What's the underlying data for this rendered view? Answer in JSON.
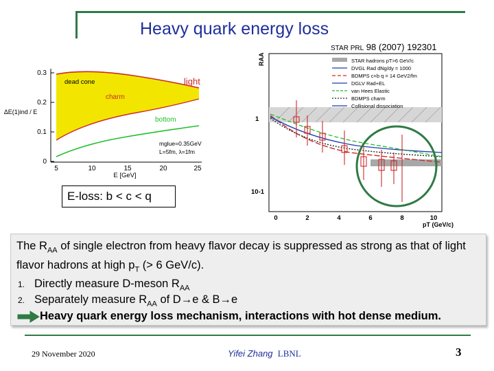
{
  "title": "Heavy quark energy loss",
  "citation": {
    "journal": "STAR PRL",
    "volume": "98",
    "rest": "(2007) 192301"
  },
  "left_plot": {
    "ylabel": "ΔE(1)ind / E",
    "xlabel": "E [GeV]",
    "y_ticks": [
      "0",
      "0.1",
      "0.2",
      "0.3"
    ],
    "x_ticks": [
      "5",
      "10",
      "15",
      "20",
      "25"
    ],
    "labels": {
      "dead_cone": "dead cone",
      "light": "light",
      "charm": "charm",
      "bottom": "bottom"
    },
    "params": {
      "line1": "mglue=0.35GeV",
      "line2": "L=5fm, λ=1fm"
    },
    "colors": {
      "dead_cone": "#f2e600",
      "light": "#cc2a2a",
      "charm": "#cc2a2a",
      "bottom": "#1fbf2a"
    }
  },
  "right_plot": {
    "ylabel": "RAA",
    "xlabel": "pT (GeV/c)",
    "y_ticks": [
      "10-1",
      "1"
    ],
    "x_ticks": [
      "0",
      "2",
      "4",
      "6",
      "8",
      "10"
    ],
    "legend": [
      "STAR hadrons pT>6 GeV/c",
      "DVGL Rad dNg/dy = 1000",
      "BDMPS c+b q = 14 GeV2/fm",
      "DGLV Rad+EL",
      "van Hees Elastic",
      "BDMPS charm",
      "Collisional dissociation"
    ],
    "highlight_color": "#2f7a45"
  },
  "eloss_box": "E-loss: b < c < q",
  "summary": {
    "para_a": "The R",
    "para_sub1": "AA",
    "para_b": " of single electron from heavy flavor decay is suppressed as strong as that of light flavor hadrons at high p",
    "para_sub2": "T",
    "para_c": " (> 6 GeV/c).",
    "item1_num": "1.",
    "item1_a": "Directly measure D-meson R",
    "item1_sub": "AA",
    "item2_num": "2.",
    "item2_a": "Separately measure R",
    "item2_sub": "AA",
    "item2_b": " of D→e & B→e",
    "conclusion": "Heavy quark energy loss mechanism, interactions with hot dense medium."
  },
  "footer": {
    "date": "29 November 2020",
    "author": "Yifei Zhang",
    "institution": "LBNL",
    "page": "3"
  }
}
